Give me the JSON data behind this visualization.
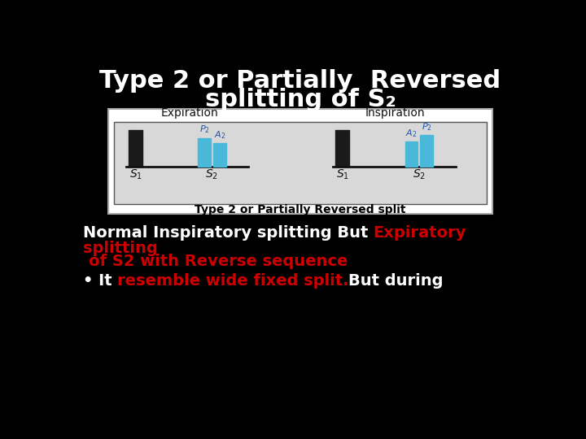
{
  "title_line1": "Type 2 or Partially  Reversed",
  "title_line2": "splitting of S₂",
  "title_color": "#ffffff",
  "title_fontsize": 22,
  "bg_color": "#000000",
  "diagram_label_top_left": "Expiration",
  "diagram_label_top_right": "Inspiration",
  "diagram_caption": "Type 2 or Partially Reversed split",
  "bar_color_black": "#1a1a1a",
  "bar_color_cyan": "#4ab8d8",
  "text_white": "#ffffff",
  "text_red": "#cc0000",
  "font_size_body": 14
}
